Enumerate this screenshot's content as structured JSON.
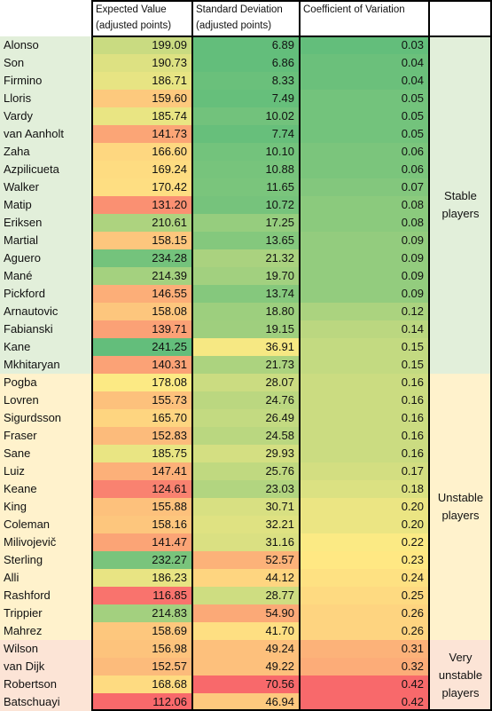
{
  "chart_data": {
    "type": "table",
    "columns": [
      "Expected Value (adjusted points)",
      "Standard Deviation (adjusted points)",
      "Coefficient of Variation"
    ],
    "rows": [
      {
        "player": "Alonso",
        "ev": "199.09",
        "sd": "6.89",
        "cv": "0.03"
      },
      {
        "player": "Son",
        "ev": "190.73",
        "sd": "6.86",
        "cv": "0.04"
      },
      {
        "player": "Firmino",
        "ev": "186.71",
        "sd": "8.33",
        "cv": "0.04"
      },
      {
        "player": "Lloris",
        "ev": "159.60",
        "sd": "7.49",
        "cv": "0.05"
      },
      {
        "player": "Vardy",
        "ev": "185.74",
        "sd": "10.02",
        "cv": "0.05"
      },
      {
        "player": "van Aanholt",
        "ev": "141.73",
        "sd": "7.74",
        "cv": "0.05"
      },
      {
        "player": "Zaha",
        "ev": "166.60",
        "sd": "10.10",
        "cv": "0.06"
      },
      {
        "player": "Azpilicueta",
        "ev": "169.24",
        "sd": "10.88",
        "cv": "0.06"
      },
      {
        "player": "Walker",
        "ev": "170.42",
        "sd": "11.65",
        "cv": "0.07"
      },
      {
        "player": "Matip",
        "ev": "131.20",
        "sd": "10.72",
        "cv": "0.08"
      },
      {
        "player": "Eriksen",
        "ev": "210.61",
        "sd": "17.25",
        "cv": "0.08"
      },
      {
        "player": "Martial",
        "ev": "158.15",
        "sd": "13.65",
        "cv": "0.09"
      },
      {
        "player": "Aguero",
        "ev": "234.28",
        "sd": "21.32",
        "cv": "0.09"
      },
      {
        "player": "Mané",
        "ev": "214.39",
        "sd": "19.70",
        "cv": "0.09"
      },
      {
        "player": "Pickford",
        "ev": "146.55",
        "sd": "13.74",
        "cv": "0.09"
      },
      {
        "player": "Arnautovic",
        "ev": "158.08",
        "sd": "18.80",
        "cv": "0.12"
      },
      {
        "player": "Fabianski",
        "ev": "139.71",
        "sd": "19.15",
        "cv": "0.14"
      },
      {
        "player": "Kane",
        "ev": "241.25",
        "sd": "36.91",
        "cv": "0.15"
      },
      {
        "player": "Mkhitaryan",
        "ev": "140.31",
        "sd": "21.73",
        "cv": "0.15"
      },
      {
        "player": "Pogba",
        "ev": "178.08",
        "sd": "28.07",
        "cv": "0.16"
      },
      {
        "player": "Lovren",
        "ev": "155.73",
        "sd": "24.76",
        "cv": "0.16"
      },
      {
        "player": "Sigurdsson",
        "ev": "165.70",
        "sd": "26.49",
        "cv": "0.16"
      },
      {
        "player": "Fraser",
        "ev": "152.83",
        "sd": "24.58",
        "cv": "0.16"
      },
      {
        "player": "Sane",
        "ev": "185.75",
        "sd": "29.93",
        "cv": "0.16"
      },
      {
        "player": "Luiz",
        "ev": "147.41",
        "sd": "25.76",
        "cv": "0.17"
      },
      {
        "player": "Keane",
        "ev": "124.61",
        "sd": "23.03",
        "cv": "0.18"
      },
      {
        "player": "King",
        "ev": "155.88",
        "sd": "30.71",
        "cv": "0.20"
      },
      {
        "player": "Coleman",
        "ev": "158.16",
        "sd": "32.21",
        "cv": "0.20"
      },
      {
        "player": "Milivojevič",
        "ev": "141.47",
        "sd": "31.16",
        "cv": "0.22"
      },
      {
        "player": "Sterling",
        "ev": "232.27",
        "sd": "52.57",
        "cv": "0.23"
      },
      {
        "player": "Alli",
        "ev": "186.23",
        "sd": "44.12",
        "cv": "0.24"
      },
      {
        "player": "Rashford",
        "ev": "116.85",
        "sd": "28.77",
        "cv": "0.25"
      },
      {
        "player": "Trippier",
        "ev": "214.83",
        "sd": "54.90",
        "cv": "0.26"
      },
      {
        "player": "Mahrez",
        "ev": "158.69",
        "sd": "41.70",
        "cv": "0.26"
      },
      {
        "player": "Wilson",
        "ev": "156.98",
        "sd": "49.24",
        "cv": "0.31"
      },
      {
        "player": "van Dijk",
        "ev": "152.57",
        "sd": "49.22",
        "cv": "0.32"
      },
      {
        "player": "Robertson",
        "ev": "168.68",
        "sd": "70.56",
        "cv": "0.42"
      },
      {
        "player": "Batschuayi",
        "ev": "112.06",
        "sd": "46.94",
        "cv": "0.42"
      }
    ],
    "groups": [
      {
        "label": "Stable\nplayers",
        "first": 0,
        "last": 18,
        "color": "#e2efda"
      },
      {
        "label": "Unstable\nplayers",
        "first": 19,
        "last": 33,
        "color": "#fff2cc"
      },
      {
        "label": "Very\nunstable\nplayers",
        "first": 34,
        "last": 37,
        "color": "#fce4d6"
      }
    ],
    "color_scales": {
      "ev": {
        "direction": "high-is-green"
      },
      "sd": {
        "direction": "low-is-green"
      },
      "cv": {
        "direction": "low-is-green"
      }
    },
    "palette": {
      "green": "#63be7b",
      "yellow": "#ffeb84",
      "red": "#f8696b"
    }
  }
}
